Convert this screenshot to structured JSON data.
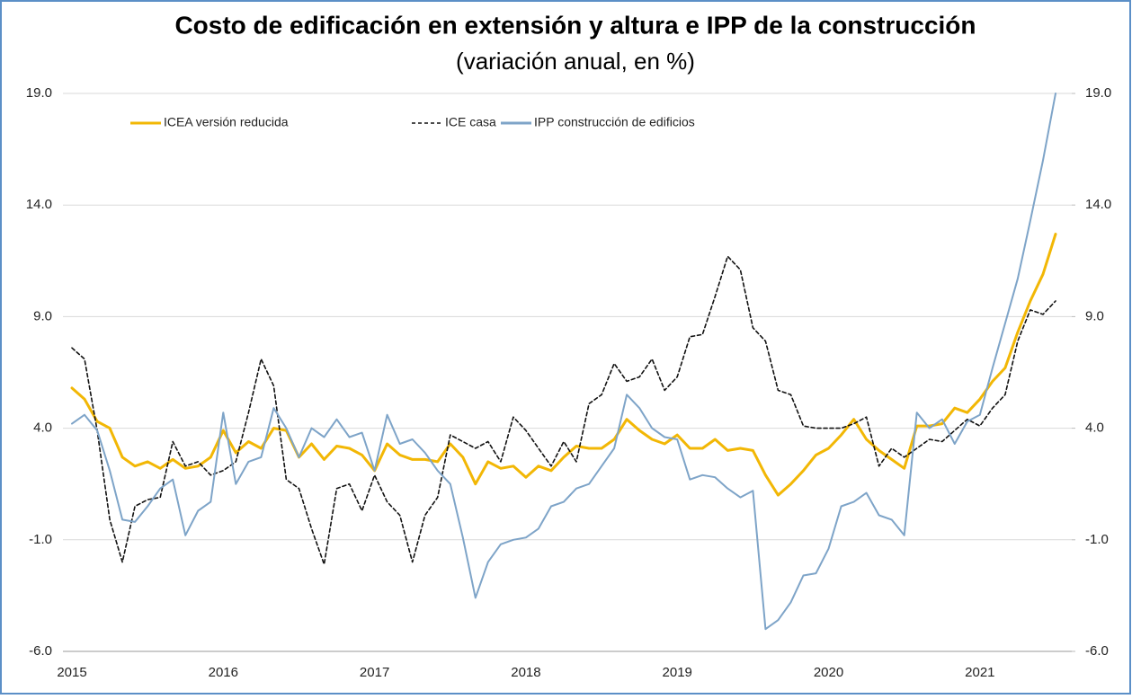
{
  "chart_data": {
    "type": "line",
    "title": "Costo de edificación en extensión y altura e IPP de la construcción",
    "subtitle": "(variación anual, en %)",
    "categories": [
      "2015",
      null,
      null,
      null,
      null,
      null,
      null,
      null,
      null,
      null,
      null,
      null,
      "2016",
      null,
      null,
      null,
      null,
      null,
      null,
      null,
      null,
      null,
      null,
      null,
      "2017",
      null,
      null,
      null,
      null,
      null,
      null,
      null,
      null,
      null,
      null,
      null,
      "2018",
      null,
      null,
      null,
      null,
      null,
      null,
      null,
      null,
      null,
      null,
      null,
      "2019",
      null,
      null,
      null,
      null,
      null,
      null,
      null,
      null,
      null,
      null,
      null,
      "2020",
      null,
      null,
      null,
      null,
      null,
      null,
      null,
      null,
      null,
      null,
      null,
      "2021",
      null,
      null,
      null,
      null,
      null,
      null
    ],
    "series": [
      {
        "name": "ICEA versión reducida",
        "color": "#f2b705",
        "dash": "solid",
        "values": [
          5.8,
          5.3,
          4.3,
          4.0,
          2.7,
          2.3,
          2.5,
          2.2,
          2.6,
          2.2,
          2.3,
          2.7,
          3.9,
          2.9,
          3.4,
          3.1,
          4.0,
          3.9,
          2.7,
          3.3,
          2.6,
          3.2,
          3.1,
          2.8,
          2.1,
          3.3,
          2.8,
          2.6,
          2.6,
          2.5,
          3.3,
          2.7,
          1.5,
          2.5,
          2.2,
          2.3,
          1.8,
          2.3,
          2.1,
          2.7,
          3.2,
          3.1,
          3.1,
          3.5,
          4.4,
          3.9,
          3.5,
          3.3,
          3.7,
          3.1,
          3.1,
          3.5,
          3.0,
          3.1,
          3.0,
          1.9,
          1.0,
          1.5,
          2.1,
          2.8,
          3.1,
          3.7,
          4.4,
          3.5,
          3.0,
          2.6,
          2.2,
          4.1,
          4.1,
          4.2,
          4.9,
          4.7,
          5.3,
          6.1,
          6.7,
          8.3,
          9.7,
          10.9,
          12.7
        ]
      },
      {
        "name": "ICE casa",
        "color": "#111111",
        "dash": "dashed",
        "values": [
          7.6,
          7.1,
          3.9,
          -0.1,
          -2.0,
          0.5,
          0.8,
          0.9,
          3.4,
          2.3,
          2.5,
          1.9,
          2.1,
          2.5,
          4.7,
          7.1,
          5.9,
          1.7,
          1.3,
          -0.5,
          -2.1,
          1.3,
          1.5,
          0.3,
          1.9,
          0.7,
          0.1,
          -2.0,
          0.1,
          0.9,
          3.7,
          3.4,
          3.1,
          3.4,
          2.5,
          4.5,
          3.9,
          3.1,
          2.3,
          3.4,
          2.5,
          5.1,
          5.5,
          6.9,
          6.1,
          6.3,
          7.1,
          5.7,
          6.3,
          8.1,
          8.2,
          9.9,
          11.7,
          11.1,
          8.5,
          7.9,
          5.7,
          5.5,
          4.1,
          4.0,
          4.0,
          4.0,
          4.2,
          4.5,
          2.3,
          3.1,
          2.7,
          3.1,
          3.5,
          3.4,
          3.9,
          4.4,
          4.1,
          4.9,
          5.5,
          7.9,
          9.3,
          9.1,
          9.7
        ]
      },
      {
        "name": "IPP construcción de edificios",
        "color": "#7ea4c8",
        "dash": "solid",
        "values": [
          4.2,
          4.6,
          3.9,
          2.1,
          -0.1,
          -0.2,
          0.5,
          1.3,
          1.7,
          -0.8,
          0.3,
          0.7,
          4.7,
          1.5,
          2.5,
          2.7,
          4.9,
          4.0,
          2.7,
          4.0,
          3.6,
          4.4,
          3.6,
          3.8,
          2.1,
          4.6,
          3.3,
          3.5,
          2.9,
          2.1,
          1.5,
          -0.9,
          -3.6,
          -2.0,
          -1.2,
          -1.0,
          -0.9,
          -0.5,
          0.5,
          0.7,
          1.3,
          1.5,
          2.3,
          3.1,
          5.5,
          4.9,
          4.0,
          3.6,
          3.5,
          1.7,
          1.9,
          1.8,
          1.3,
          0.9,
          1.2,
          -5.0,
          -4.6,
          -3.8,
          -2.6,
          -2.5,
          -1.4,
          0.5,
          0.7,
          1.1,
          0.1,
          -0.1,
          -0.8,
          4.7,
          4.0,
          4.4,
          3.3,
          4.3,
          4.6,
          6.7,
          8.7,
          10.7,
          13.3,
          16.0,
          19.0
        ]
      }
    ],
    "ylim": [
      -6,
      19
    ],
    "yticks": [
      {
        "value": -6,
        "label": "-6.0"
      },
      {
        "value": -1,
        "label": "-1.0"
      },
      {
        "value": 4,
        "label": "4.0"
      },
      {
        "value": 9,
        "label": "9.0"
      },
      {
        "value": 14,
        "label": "14.0"
      },
      {
        "value": 19,
        "label": "19.0"
      }
    ],
    "y2lim": [
      -6,
      19
    ],
    "y2ticks": [
      {
        "value": -6,
        "label": "-6.0"
      },
      {
        "value": -1,
        "label": "-1.0"
      },
      {
        "value": 4,
        "label": "4.0"
      },
      {
        "value": 9,
        "label": "9.0"
      },
      {
        "value": 14,
        "label": "14.0"
      },
      {
        "value": 19,
        "label": "19.0"
      }
    ],
    "grid": true,
    "legend": "top"
  }
}
